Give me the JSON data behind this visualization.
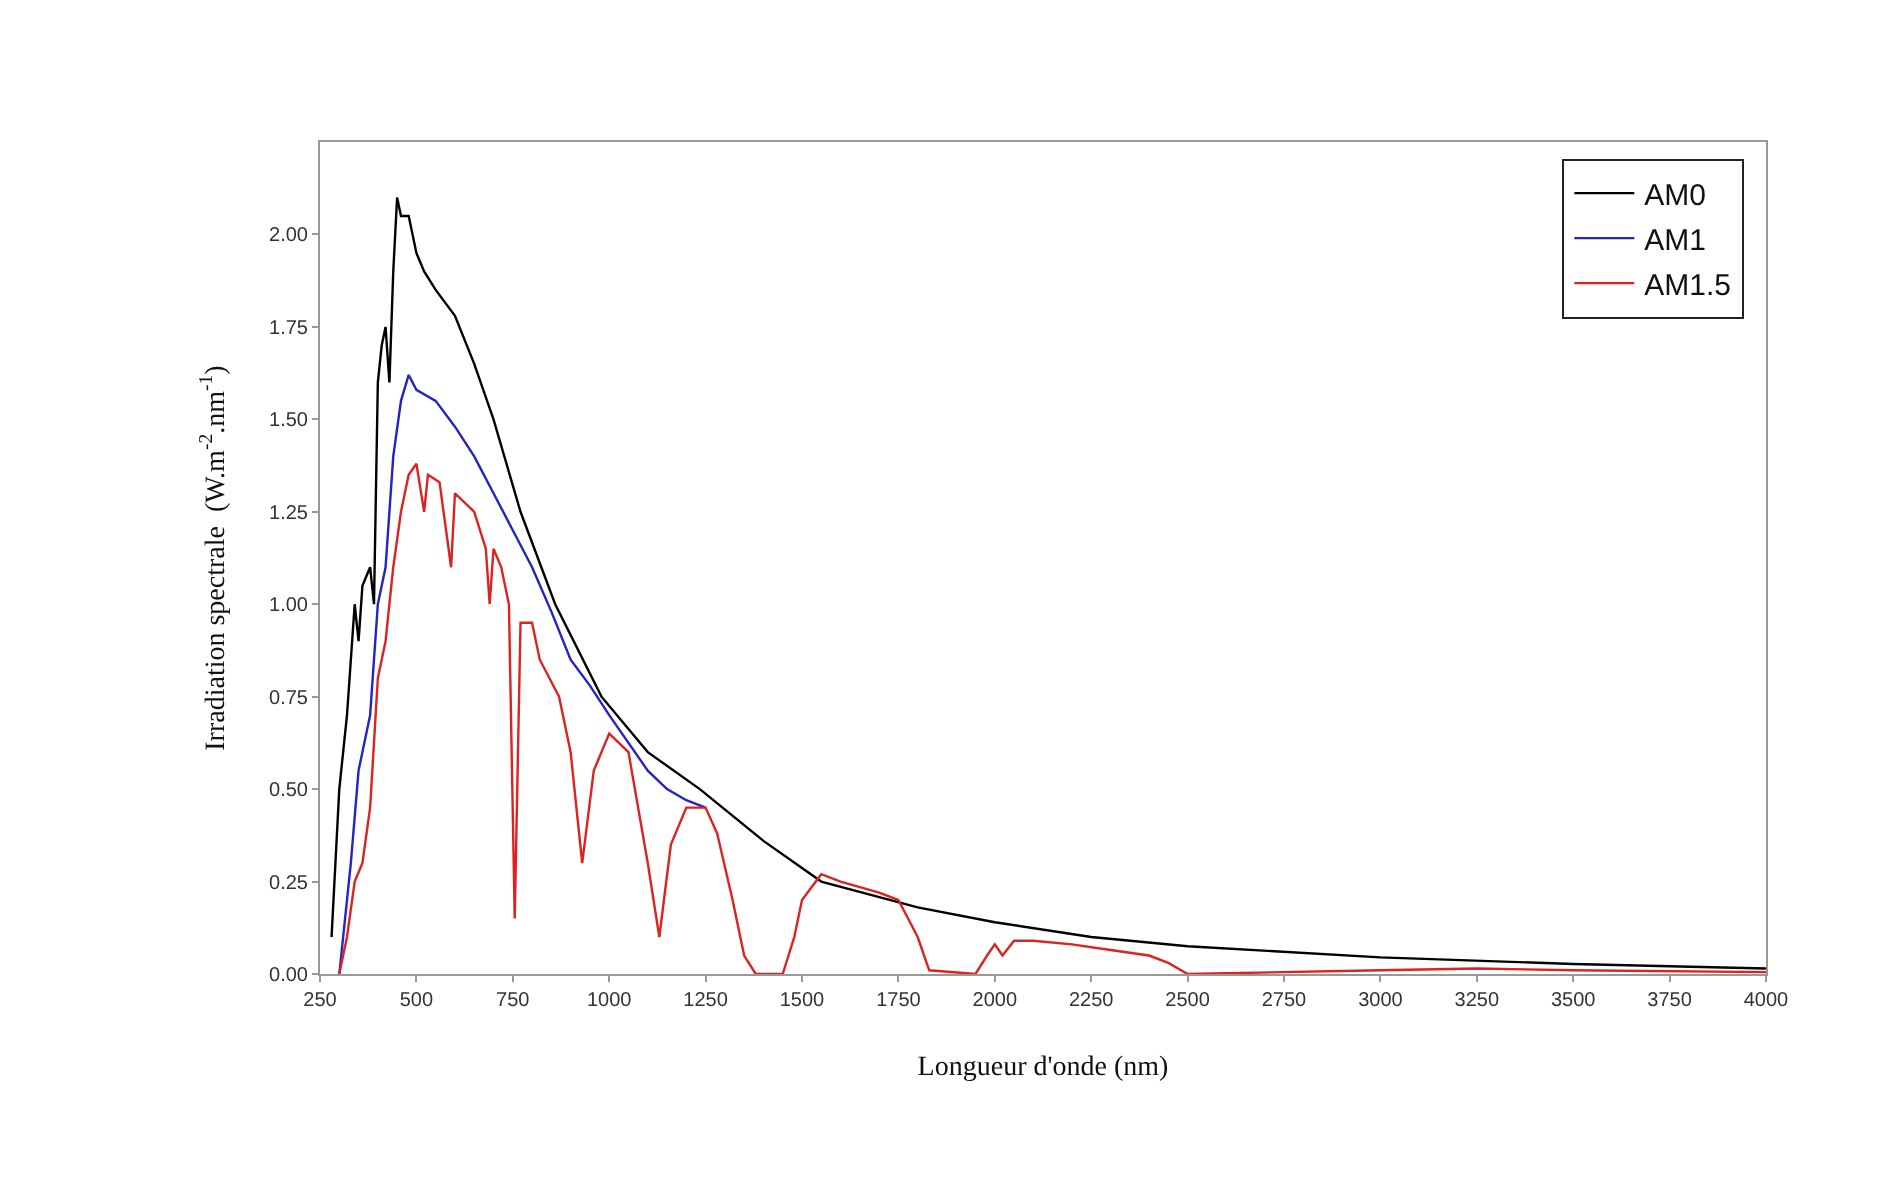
{
  "chart_data": {
    "type": "line",
    "xlabel": "Longueur d'onde (nm)",
    "ylabel": "Irradiation spectrale  (W.m$^{-2}$.nm$^{-1}$)",
    "xlim": [
      250,
      4000
    ],
    "xticks": [
      250,
      500,
      750,
      1000,
      1250,
      1500,
      1750,
      2000,
      2250,
      2500,
      2750,
      3000,
      3250,
      3500,
      3750,
      4000
    ],
    "ylim": [
      0,
      2.25
    ],
    "yticks": [
      {
        "value": 0,
        "label": "0.00"
      },
      {
        "value": 0.25,
        "label": "0.25"
      },
      {
        "value": 0.5,
        "label": "0.50"
      },
      {
        "value": 0.75,
        "label": "0.75"
      },
      {
        "value": 1,
        "label": "1.00"
      },
      {
        "value": 1.25,
        "label": "1.25"
      },
      {
        "value": 1.5,
        "label": "1.50"
      },
      {
        "value": 1.75,
        "label": "1.75"
      },
      {
        "value": 2,
        "label": "2.00"
      }
    ],
    "grid": false,
    "legend": "top right",
    "marker": "none",
    "line_style": "solid",
    "series": [
      {
        "name": "AM0",
        "color": "#000000",
        "x": [
          280,
          300,
          320,
          340,
          350,
          360,
          380,
          390,
          400,
          410,
          420,
          430,
          440,
          450,
          460,
          480,
          500,
          520,
          550,
          600,
          650,
          700,
          770,
          860,
          980,
          1100,
          1235,
          1400,
          1550,
          1800,
          2000,
          2250,
          2500,
          3000,
          3500,
          4000
        ],
        "values": [
          0.1,
          0.5,
          0.7,
          1.0,
          0.9,
          1.05,
          1.1,
          1.0,
          1.6,
          1.7,
          1.75,
          1.6,
          1.9,
          2.1,
          2.05,
          2.05,
          1.95,
          1.9,
          1.85,
          1.78,
          1.65,
          1.5,
          1.25,
          1.0,
          0.75,
          0.6,
          0.5,
          0.36,
          0.25,
          0.18,
          0.14,
          0.1,
          0.075,
          0.045,
          0.027,
          0.015
        ]
      },
      {
        "name": "AM1",
        "color": "#2323c8",
        "x": [
          300,
          330,
          350,
          380,
          400,
          420,
          440,
          460,
          480,
          500,
          550,
          600,
          650,
          700,
          750,
          800,
          850,
          900,
          950,
          1000,
          1100,
          1150,
          1200,
          1250
        ],
        "values": [
          0,
          0.3,
          0.55,
          0.7,
          1.0,
          1.1,
          1.4,
          1.55,
          1.62,
          1.58,
          1.55,
          1.48,
          1.4,
          1.3,
          1.2,
          1.1,
          0.98,
          0.85,
          0.78,
          0.7,
          0.55,
          0.5,
          0.47,
          0.45
        ]
      },
      {
        "name": "AM1.5",
        "color": "#dd2222",
        "x": [
          300,
          320,
          340,
          360,
          380,
          400,
          420,
          440,
          460,
          480,
          500,
          520,
          530,
          560,
          590,
          600,
          650,
          680,
          690,
          700,
          720,
          740,
          755,
          770,
          800,
          820,
          870,
          900,
          930,
          960,
          1000,
          1050,
          1100,
          1130,
          1160,
          1200,
          1250,
          1280,
          1320,
          1350,
          1380,
          1450,
          1480,
          1500,
          1550,
          1600,
          1700,
          1750,
          1800,
          1830,
          1950,
          1980,
          2000,
          2020,
          2050,
          2100,
          2200,
          2300,
          2400,
          2450,
          2500,
          2600,
          3000,
          3250,
          3500,
          4000
        ],
        "values": [
          0,
          0.1,
          0.25,
          0.3,
          0.45,
          0.8,
          0.9,
          1.1,
          1.25,
          1.35,
          1.38,
          1.25,
          1.35,
          1.33,
          1.1,
          1.3,
          1.25,
          1.15,
          1.0,
          1.15,
          1.1,
          1.0,
          0.15,
          0.95,
          0.95,
          0.85,
          0.75,
          0.6,
          0.3,
          0.55,
          0.65,
          0.6,
          0.3,
          0.1,
          0.35,
          0.45,
          0.45,
          0.38,
          0.2,
          0.05,
          0,
          0,
          0.1,
          0.2,
          0.27,
          0.25,
          0.22,
          0.2,
          0.1,
          0.01,
          0,
          0.05,
          0.08,
          0.05,
          0.09,
          0.09,
          0.08,
          0.065,
          0.05,
          0.03,
          0,
          0.002,
          0.01,
          0.015,
          0.01,
          0.005
        ]
      }
    ]
  }
}
